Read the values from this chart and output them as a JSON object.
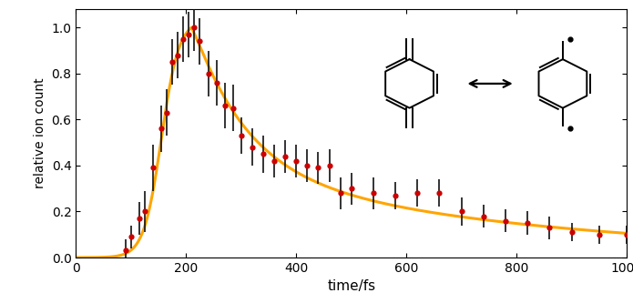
{
  "exp_x": [
    90,
    100,
    115,
    125,
    140,
    155,
    165,
    175,
    185,
    195,
    205,
    215,
    225,
    240,
    255,
    270,
    285,
    300,
    320,
    340,
    360,
    380,
    400,
    420,
    440,
    460,
    480,
    500,
    540,
    580,
    620,
    660,
    700,
    740,
    780,
    820,
    860,
    900,
    950,
    1000
  ],
  "exp_y": [
    0.03,
    0.09,
    0.17,
    0.2,
    0.39,
    0.56,
    0.63,
    0.85,
    0.88,
    0.95,
    0.97,
    1.0,
    0.94,
    0.8,
    0.76,
    0.66,
    0.65,
    0.53,
    0.48,
    0.45,
    0.42,
    0.44,
    0.42,
    0.4,
    0.39,
    0.4,
    0.28,
    0.3,
    0.28,
    0.27,
    0.28,
    0.28,
    0.2,
    0.18,
    0.16,
    0.15,
    0.13,
    0.11,
    0.1,
    0.1
  ],
  "exp_yerr": [
    0.05,
    0.05,
    0.07,
    0.09,
    0.1,
    0.1,
    0.1,
    0.1,
    0.1,
    0.1,
    0.1,
    0.1,
    0.1,
    0.1,
    0.1,
    0.1,
    0.1,
    0.08,
    0.08,
    0.08,
    0.07,
    0.07,
    0.07,
    0.07,
    0.07,
    0.07,
    0.07,
    0.07,
    0.07,
    0.06,
    0.06,
    0.06,
    0.06,
    0.05,
    0.05,
    0.05,
    0.05,
    0.04,
    0.04,
    0.04
  ],
  "sim_color": "#FFA500",
  "exp_color": "#CC0000",
  "exp_ecolor": "#111111",
  "xlabel": "time/fs",
  "ylabel": "relative ion count",
  "xlim": [
    0,
    1000
  ],
  "ylim": [
    0.0,
    1.08
  ],
  "yticks": [
    0.0,
    0.2,
    0.4,
    0.6,
    0.8,
    1.0
  ],
  "xticks": [
    0,
    200,
    400,
    600,
    800,
    1000
  ],
  "bg_color": "#ffffff"
}
